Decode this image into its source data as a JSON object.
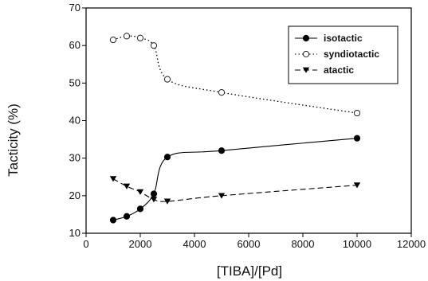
{
  "chart_data": {
    "type": "line",
    "xlabel": "[TIBA]/[Pd]",
    "ylabel": "Tacticity (%)",
    "xlim": [
      0,
      12000
    ],
    "ylim": [
      10,
      70
    ],
    "xticks": [
      0,
      2000,
      4000,
      6000,
      8000,
      10000,
      12000
    ],
    "yticks": [
      10,
      20,
      30,
      40,
      50,
      60,
      70
    ],
    "xtick_labels": [
      "0",
      "2000",
      "4000",
      "6000",
      "8000",
      "10000",
      "12000"
    ],
    "ytick_labels": [
      "10",
      "20",
      "30",
      "40",
      "50",
      "60",
      "70"
    ],
    "grid": false,
    "legend_position": "top-right",
    "series": [
      {
        "name": "isotactic",
        "marker": "filled-circle",
        "line": "solid",
        "x": [
          1000,
          1500,
          2000,
          2500,
          3000,
          5000,
          10000
        ],
        "y": [
          13.5,
          14.5,
          16.5,
          20.5,
          30.3,
          32.0,
          35.3
        ]
      },
      {
        "name": "syndiotactic",
        "marker": "open-circle",
        "line": "dotted",
        "x": [
          1000,
          1500,
          2000,
          2500,
          3000,
          5000,
          10000
        ],
        "y": [
          61.5,
          62.5,
          62.0,
          60.0,
          51.0,
          47.5,
          42.0
        ]
      },
      {
        "name": "atactic",
        "marker": "filled-triangle-down",
        "line": "dashed",
        "x": [
          1000,
          1500,
          2000,
          2500,
          3000,
          5000,
          10000
        ],
        "y": [
          24.5,
          22.5,
          21.0,
          19.0,
          18.5,
          20.0,
          22.8
        ]
      }
    ]
  }
}
